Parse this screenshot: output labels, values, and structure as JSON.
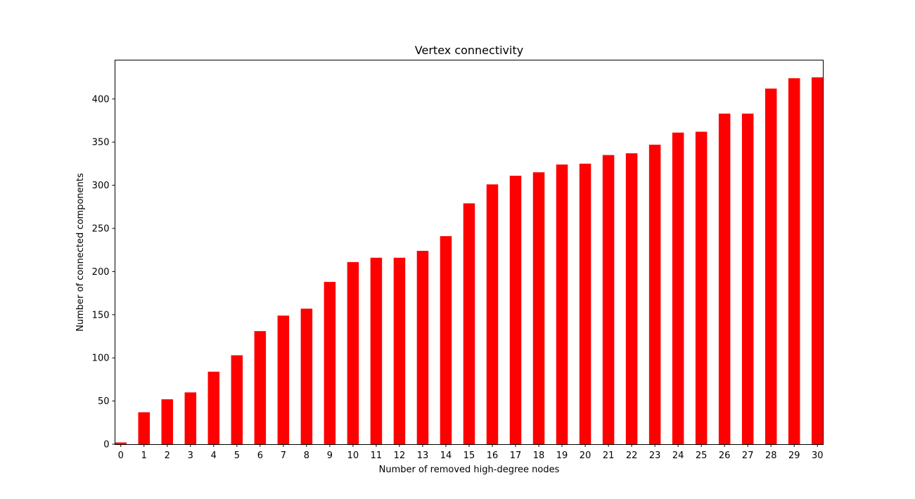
{
  "chart_data": {
    "type": "bar",
    "title": "Vertex connectivity",
    "xlabel": "Number of removed high-degree nodes",
    "ylabel": "Number of connected components",
    "categories": [
      "0",
      "1",
      "2",
      "3",
      "4",
      "5",
      "6",
      "7",
      "8",
      "9",
      "10",
      "11",
      "12",
      "13",
      "14",
      "15",
      "16",
      "17",
      "18",
      "19",
      "20",
      "21",
      "22",
      "23",
      "24",
      "25",
      "26",
      "27",
      "28",
      "29",
      "30"
    ],
    "values": [
      2,
      37,
      52,
      60,
      84,
      103,
      131,
      149,
      157,
      188,
      211,
      216,
      216,
      224,
      241,
      279,
      301,
      311,
      315,
      324,
      325,
      335,
      337,
      347,
      361,
      362,
      383,
      383,
      412,
      424,
      425
    ],
    "yticks": [
      0,
      50,
      100,
      150,
      200,
      250,
      300,
      350,
      400
    ],
    "ylim": [
      0,
      445
    ],
    "bar_color": "#ff0000",
    "grid": false,
    "legend": "none"
  }
}
